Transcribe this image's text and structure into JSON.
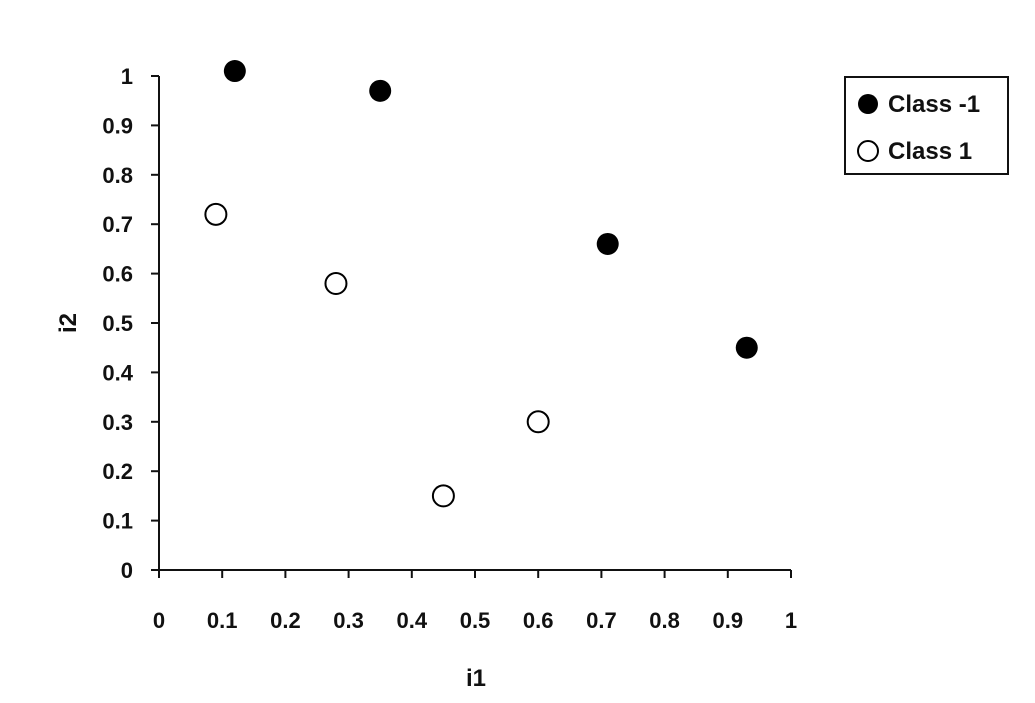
{
  "chart_data": {
    "type": "scatter",
    "xlabel": "i1",
    "ylabel": "i2",
    "xlim": [
      0,
      1
    ],
    "ylim": [
      0,
      1
    ],
    "x_ticks": [
      "0",
      "0.1",
      "0.2",
      "0.3",
      "0.4",
      "0.5",
      "0.6",
      "0.7",
      "0.8",
      "0.9",
      "1"
    ],
    "y_ticks": [
      "0",
      "0.1",
      "0.2",
      "0.3",
      "0.4",
      "0.5",
      "0.6",
      "0.7",
      "0.8",
      "0.9",
      "1"
    ],
    "grid": false,
    "legend_position": "top-right",
    "series": [
      {
        "name": "Class -1",
        "marker": "filled-circle",
        "color": "#000000",
        "points": [
          {
            "x": 0.12,
            "y": 1.01
          },
          {
            "x": 0.35,
            "y": 0.97
          },
          {
            "x": 0.71,
            "y": 0.66
          },
          {
            "x": 0.93,
            "y": 0.45
          }
        ]
      },
      {
        "name": "Class 1",
        "marker": "open-circle",
        "color": "#000000",
        "points": [
          {
            "x": 0.09,
            "y": 0.72
          },
          {
            "x": 0.28,
            "y": 0.58
          },
          {
            "x": 0.45,
            "y": 0.15
          },
          {
            "x": 0.6,
            "y": 0.3
          }
        ]
      }
    ]
  }
}
